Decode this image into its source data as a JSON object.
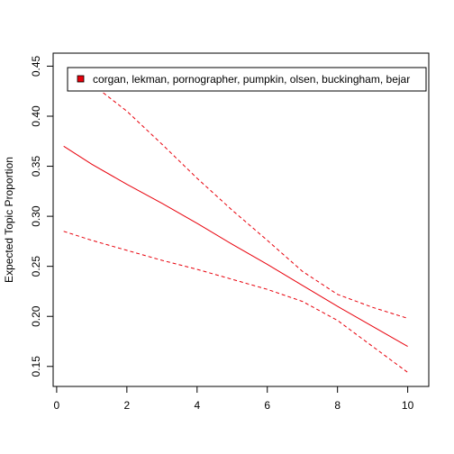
{
  "chart_data": {
    "type": "line",
    "title": "",
    "xlabel": "",
    "ylabel": "Expected Topic Proportion",
    "xlim": [
      -0.1,
      10.6
    ],
    "ylim": [
      0.13,
      0.463
    ],
    "x_ticks": [
      0,
      2,
      4,
      6,
      8,
      10
    ],
    "y_ticks": [
      0.15,
      0.2,
      0.25,
      0.3,
      0.35,
      0.4,
      0.45
    ],
    "grid": false,
    "legend": {
      "placement": "top",
      "entries": [
        "corgan, lekman, pornographer, pumpkin, olsen, buckingham, bejar"
      ]
    },
    "series": [
      {
        "name": "corgan, lekman, pornographer, pumpkin, olsen, buckingham, bejar",
        "role": "estimate",
        "color": "#e8000b",
        "dash": "solid",
        "x": [
          0.2,
          1,
          2,
          3,
          4,
          5,
          6,
          7,
          8,
          9,
          10
        ],
        "y": [
          0.37,
          0.352,
          0.332,
          0.313,
          0.293,
          0.272,
          0.252,
          0.231,
          0.21,
          0.19,
          0.17
        ]
      },
      {
        "name": "",
        "role": "upper bound",
        "color": "#e8000b",
        "dash": "dashed",
        "x": [
          0.9,
          2,
          3,
          4,
          5,
          6,
          7,
          8,
          9,
          10
        ],
        "y": [
          0.435,
          0.405,
          0.372,
          0.338,
          0.306,
          0.276,
          0.245,
          0.222,
          0.209,
          0.198
        ]
      },
      {
        "name": "",
        "role": "lower bound",
        "color": "#e8000b",
        "dash": "dashed",
        "x": [
          0.2,
          1,
          2,
          3,
          4,
          5,
          6,
          7,
          8,
          9,
          10
        ],
        "y": [
          0.285,
          0.276,
          0.266,
          0.256,
          0.247,
          0.237,
          0.227,
          0.215,
          0.196,
          0.17,
          0.144
        ]
      }
    ]
  }
}
